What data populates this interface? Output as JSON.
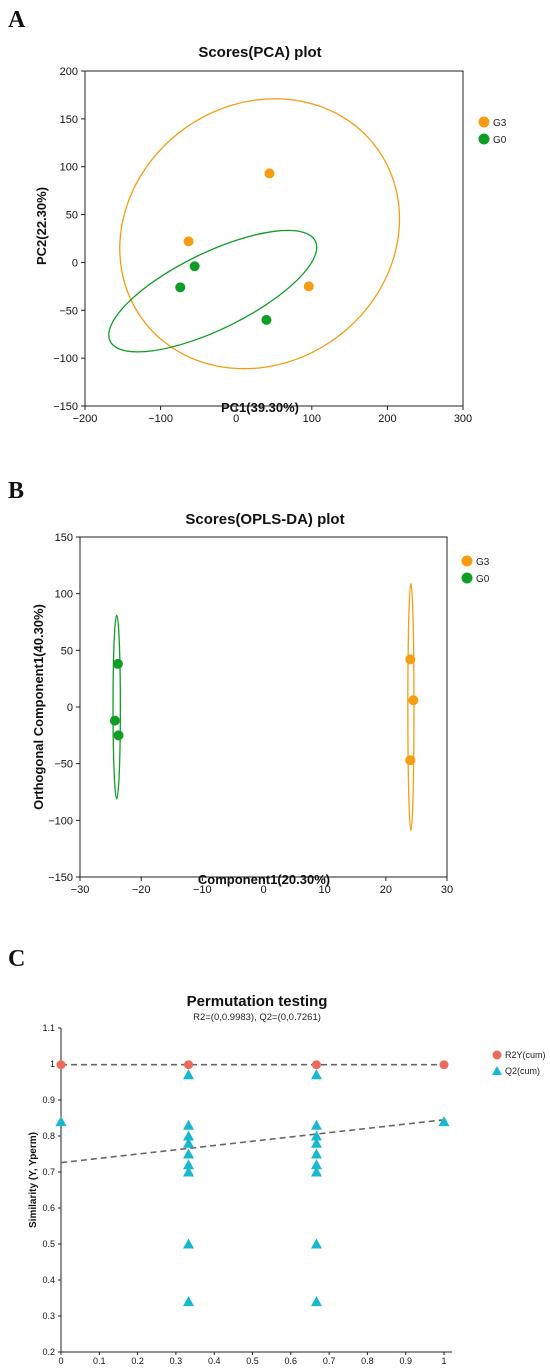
{
  "panel_labels": [
    "A",
    "B",
    "C"
  ],
  "colors": {
    "G3": "#f59c12",
    "G0": "#109d26",
    "R2Y": "#ee6a5a",
    "Q2": "#18b8d0"
  },
  "chart_data": [
    {
      "type": "scatter",
      "title": "Scores(PCA) plot",
      "xlabel": "PC1(39.30%)",
      "ylabel": "PC2(22.30%)",
      "xlim": [
        -200,
        300
      ],
      "ylim": [
        -150,
        200
      ],
      "xticks": [
        -200,
        -100,
        0,
        100,
        200,
        300
      ],
      "yticks": [
        -150,
        -100,
        -50,
        0,
        50,
        100,
        150,
        200
      ],
      "grid": false,
      "legend_position": "top-right",
      "series": [
        {
          "name": "G3",
          "color": "#f59c12",
          "points": [
            [
              44,
              93
            ],
            [
              -63,
              22
            ],
            [
              96,
              -25
            ]
          ],
          "ellipse": {
            "cx": 31,
            "cy": 30,
            "rx": 192,
            "ry": 135,
            "angle_deg": -36
          }
        },
        {
          "name": "G0",
          "color": "#109d26",
          "points": [
            [
              -55,
              -4
            ],
            [
              -74,
              -26
            ],
            [
              40,
              -60
            ]
          ],
          "ellipse": {
            "cx": -31,
            "cy": -30,
            "rx": 151,
            "ry": 40,
            "angle_deg": -26
          }
        }
      ]
    },
    {
      "type": "scatter",
      "title": "Scores(OPLS-DA) plot",
      "xlabel": "Component1(20.30%)",
      "ylabel": "Orthogonal Component1(40.30%)",
      "xlim": [
        -30,
        30
      ],
      "ylim": [
        -150,
        150
      ],
      "xticks": [
        -30,
        -20,
        -10,
        0,
        10,
        20,
        30
      ],
      "yticks": [
        -150,
        -100,
        -50,
        0,
        50,
        100,
        150
      ],
      "grid": false,
      "legend_position": "top-right",
      "series": [
        {
          "name": "G3",
          "color": "#f59c12",
          "points": [
            [
              24.0,
              42
            ],
            [
              24.5,
              6
            ],
            [
              24.0,
              -47
            ]
          ],
          "ellipse": {
            "cx": 24.1,
            "cy": 0,
            "rx": 0.5,
            "ry": 109,
            "angle_deg": 0
          }
        },
        {
          "name": "G0",
          "color": "#109d26",
          "points": [
            [
              -23.8,
              38
            ],
            [
              -24.3,
              -12
            ],
            [
              -23.7,
              -25
            ]
          ],
          "ellipse": {
            "cx": -24.0,
            "cy": 0,
            "rx": 0.6,
            "ry": 81,
            "angle_deg": 0
          }
        }
      ]
    },
    {
      "type": "scatter",
      "title": "Permutation testing",
      "subtitle": "R2=(0,0.9983), Q2=(0,0.7261)",
      "xlabel": "",
      "ylabel": "Similarity (Y, Yperm)",
      "xlim": [
        0,
        1
      ],
      "ylim": [
        0.2,
        1.1
      ],
      "xticks": [
        0,
        0.1,
        0.2,
        0.3,
        0.4,
        0.5,
        0.6,
        0.7,
        0.8,
        0.9,
        1
      ],
      "yticks": [
        0.2,
        0.3,
        0.4,
        0.5,
        0.6,
        0.7,
        0.8,
        0.9,
        1,
        1.1
      ],
      "grid": false,
      "legend_position": "top-right",
      "series": [
        {
          "name": "R2Y(cum)",
          "marker": "circle",
          "color": "#ee6a5a",
          "points": [
            [
              0,
              0.998
            ],
            [
              0.333,
              0.998
            ],
            [
              0.667,
              0.998
            ],
            [
              1,
              0.998
            ]
          ],
          "trend": [
            [
              0,
              0.998
            ],
            [
              1,
              0.998
            ]
          ]
        },
        {
          "name": "Q2(cum)",
          "marker": "triangle",
          "color": "#18b8d0",
          "points": [
            [
              0,
              0.84
            ],
            [
              0.333,
              0.97
            ],
            [
              0.333,
              0.83
            ],
            [
              0.333,
              0.8
            ],
            [
              0.333,
              0.78
            ],
            [
              0.333,
              0.75
            ],
            [
              0.333,
              0.72
            ],
            [
              0.333,
              0.7
            ],
            [
              0.333,
              0.5
            ],
            [
              0.333,
              0.34
            ],
            [
              0.667,
              0.97
            ],
            [
              0.667,
              0.83
            ],
            [
              0.667,
              0.8
            ],
            [
              0.667,
              0.78
            ],
            [
              0.667,
              0.75
            ],
            [
              0.667,
              0.72
            ],
            [
              0.667,
              0.7
            ],
            [
              0.667,
              0.5
            ],
            [
              0.667,
              0.34
            ],
            [
              1,
              0.84
            ]
          ],
          "trend": [
            [
              0,
              0.726
            ],
            [
              1,
              0.845
            ]
          ]
        }
      ]
    }
  ]
}
